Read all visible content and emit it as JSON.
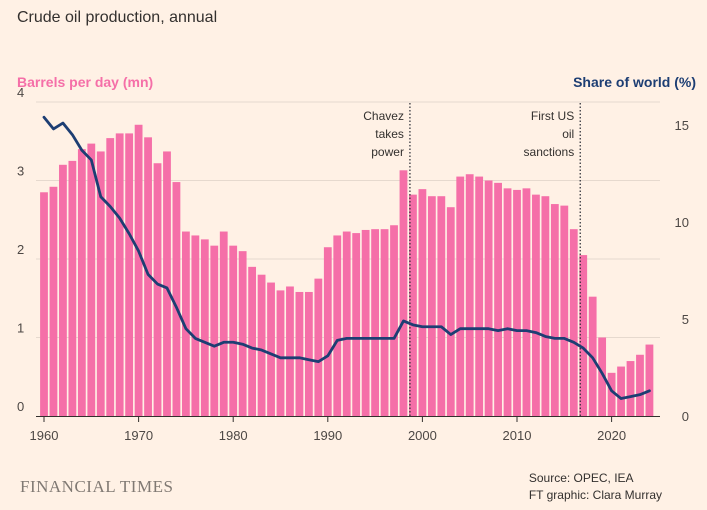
{
  "chart_data": {
    "type": "bar+line",
    "title": "Crude oil production, annual",
    "left_axis_label": "Barrels per day (mn)",
    "right_axis_label": "Share of world (%)",
    "x_ticks": [
      "1960",
      "1970",
      "1980",
      "1990",
      "2000",
      "2010",
      "2020"
    ],
    "x_tick_values": [
      1960,
      1970,
      1980,
      1990,
      2000,
      2010,
      2020
    ],
    "y_left_ticks": [
      "0",
      "1",
      "2",
      "3",
      "4"
    ],
    "y_left_tick_values": [
      0,
      1,
      2,
      3,
      4
    ],
    "y_left_lim": [
      0,
      4.2
    ],
    "y_right_ticks": [
      "0",
      "5",
      "10",
      "15"
    ],
    "y_right_tick_values": [
      0,
      5,
      10,
      15
    ],
    "y_right_lim": [
      0,
      16.3
    ],
    "bars": {
      "name": "Barrels per day (mn)",
      "color": "#f56fa8",
      "years": [
        1960,
        1961,
        1962,
        1963,
        1964,
        1965,
        1966,
        1967,
        1968,
        1969,
        1970,
        1971,
        1972,
        1973,
        1974,
        1975,
        1976,
        1977,
        1978,
        1979,
        1980,
        1981,
        1982,
        1983,
        1984,
        1985,
        1986,
        1987,
        1988,
        1989,
        1990,
        1991,
        1992,
        1993,
        1994,
        1995,
        1996,
        1997,
        1998,
        1999,
        2000,
        2001,
        2002,
        2003,
        2004,
        2005,
        2006,
        2007,
        2008,
        2009,
        2010,
        2011,
        2012,
        2013,
        2014,
        2015,
        2016,
        2017,
        2018,
        2019,
        2020,
        2021,
        2022,
        2023,
        2024
      ],
      "values": [
        2.85,
        2.92,
        3.2,
        3.25,
        3.4,
        3.47,
        3.37,
        3.54,
        3.6,
        3.6,
        3.71,
        3.55,
        3.22,
        3.37,
        2.98,
        2.35,
        2.3,
        2.25,
        2.17,
        2.35,
        2.17,
        2.1,
        1.9,
        1.8,
        1.7,
        1.6,
        1.65,
        1.58,
        1.58,
        1.75,
        2.15,
        2.3,
        2.35,
        2.33,
        2.37,
        2.38,
        2.38,
        2.43,
        3.13,
        2.82,
        2.89,
        2.8,
        2.8,
        2.66,
        3.05,
        3.08,
        3.05,
        3.0,
        2.97,
        2.9,
        2.88,
        2.9,
        2.82,
        2.8,
        2.7,
        2.68,
        2.38,
        2.05,
        1.52,
        1.0,
        0.55,
        0.63,
        0.7,
        0.78,
        0.91
      ]
    },
    "line": {
      "name": "Share of world (%)",
      "color": "#1d3e73",
      "years": [
        1960,
        1961,
        1962,
        1963,
        1964,
        1965,
        1966,
        1967,
        1968,
        1969,
        1970,
        1971,
        1972,
        1973,
        1974,
        1975,
        1976,
        1977,
        1978,
        1979,
        1980,
        1981,
        1982,
        1983,
        1984,
        1985,
        1986,
        1987,
        1988,
        1989,
        1990,
        1991,
        1992,
        1993,
        1994,
        1995,
        1996,
        1997,
        1998,
        1999,
        2000,
        2001,
        2002,
        2003,
        2004,
        2005,
        2006,
        2007,
        2008,
        2009,
        2010,
        2011,
        2012,
        2013,
        2014,
        2015,
        2016,
        2017,
        2018,
        2019,
        2020,
        2021,
        2022,
        2023,
        2024
      ],
      "values": [
        15.4,
        14.8,
        15.1,
        14.5,
        13.7,
        13.2,
        11.3,
        10.8,
        10.2,
        9.4,
        8.5,
        7.3,
        6.8,
        6.6,
        5.6,
        4.5,
        4.0,
        3.8,
        3.6,
        3.8,
        3.8,
        3.7,
        3.5,
        3.4,
        3.2,
        3.0,
        3.0,
        3.0,
        2.9,
        2.8,
        3.1,
        3.9,
        4.0,
        4.0,
        4.0,
        4.0,
        4.0,
        4.0,
        4.9,
        4.7,
        4.6,
        4.6,
        4.6,
        4.2,
        4.5,
        4.5,
        4.5,
        4.5,
        4.4,
        4.5,
        4.4,
        4.4,
        4.3,
        4.1,
        4.0,
        4.0,
        3.8,
        3.5,
        3.0,
        2.2,
        1.3,
        0.9,
        1.0,
        1.1,
        1.3
      ]
    },
    "annotations": [
      {
        "year": 1999,
        "lines": [
          "Chavez",
          "takes",
          "power"
        ]
      },
      {
        "year": 2017,
        "lines": [
          "First US",
          "oil",
          "sanctions"
        ]
      }
    ]
  },
  "footer": {
    "brand": "FINANCIAL TIMES",
    "source": "Source: OPEC, IEA",
    "credit": "FT graphic: Clara Murray"
  }
}
